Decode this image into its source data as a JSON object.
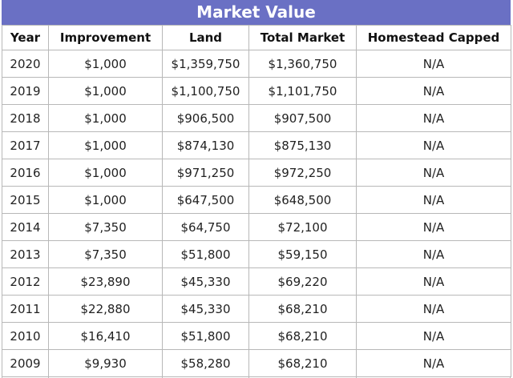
{
  "title": "Market Value",
  "table": {
    "header": [
      "Year",
      "Improvement",
      "Land",
      "Total Market",
      "Homestead Capped"
    ],
    "rows": [
      [
        "2020",
        "$1,000",
        "$1,359,750",
        "$1,360,750",
        "N/A"
      ],
      [
        "2019",
        "$1,000",
        "$1,100,750",
        "$1,101,750",
        "N/A"
      ],
      [
        "2018",
        "$1,000",
        "$906,500",
        "$907,500",
        "N/A"
      ],
      [
        "2017",
        "$1,000",
        "$874,130",
        "$875,130",
        "N/A"
      ],
      [
        "2016",
        "$1,000",
        "$971,250",
        "$972,250",
        "N/A"
      ],
      [
        "2015",
        "$1,000",
        "$647,500",
        "$648,500",
        "N/A"
      ],
      [
        "2014",
        "$7,350",
        "$64,750",
        "$72,100",
        "N/A"
      ],
      [
        "2013",
        "$7,350",
        "$51,800",
        "$59,150",
        "N/A"
      ],
      [
        "2012",
        "$23,890",
        "$45,330",
        "$69,220",
        "N/A"
      ],
      [
        "2011",
        "$22,880",
        "$45,330",
        "$68,210",
        "N/A"
      ],
      [
        "2010",
        "$16,410",
        "$51,800",
        "$68,210",
        "N/A"
      ],
      [
        "2009",
        "$9,930",
        "$58,280",
        "$68,210",
        "N/A"
      ]
    ]
  }
}
